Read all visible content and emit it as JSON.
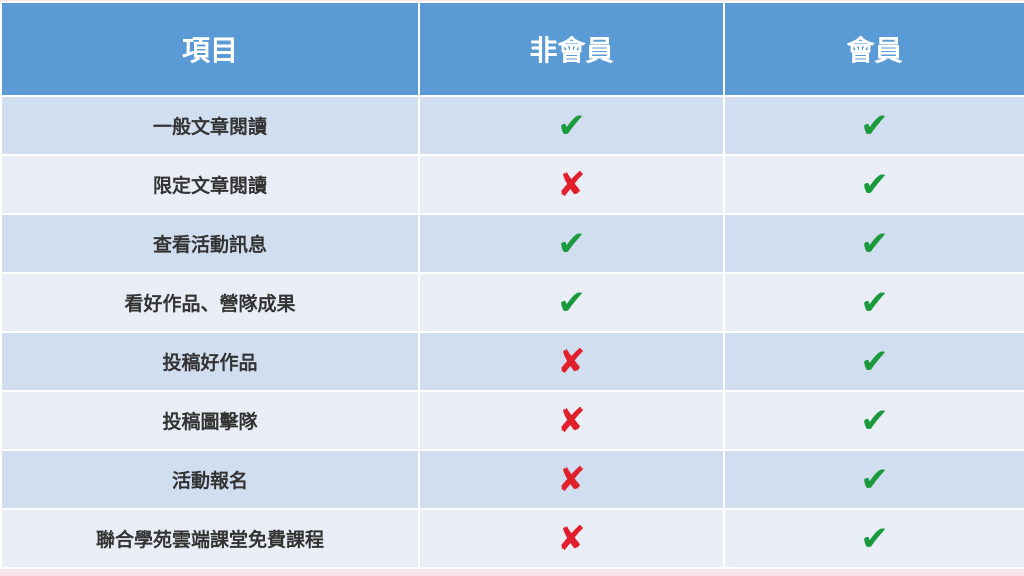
{
  "table": {
    "header": [
      "項目",
      "非會員",
      "會員"
    ],
    "rows": [
      [
        "一般文章閱讀",
        "✔",
        "✔"
      ],
      [
        "限定文章閱讀",
        "✘",
        "✔"
      ],
      [
        "查看活動訊息",
        "✔",
        "✔"
      ],
      [
        "看好作品、營隊成果",
        "✔",
        "✔"
      ],
      [
        "投稿好作品",
        "✘",
        "✔"
      ],
      [
        "投稿圖擊隊",
        "✘",
        "✔"
      ],
      [
        "活動報名",
        "✘",
        "✔"
      ],
      [
        "聯合學苑雲端課堂免費課程",
        "✘",
        "✔"
      ]
    ],
    "mark_colors": {
      "✔": "#1a9a3c",
      "✘": "#e2202c"
    }
  }
}
